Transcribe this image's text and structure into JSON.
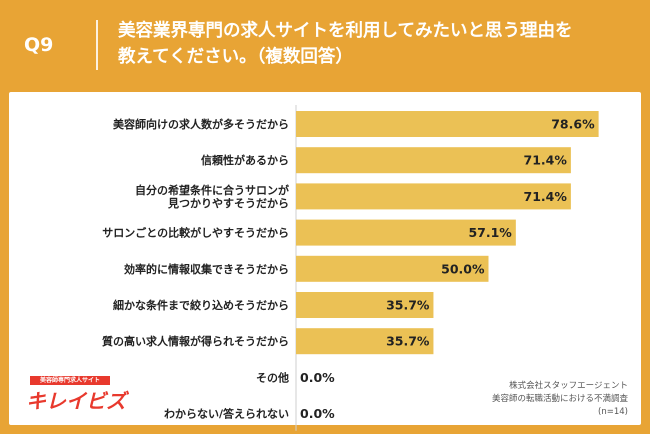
{
  "header": {
    "qnum": "Q9",
    "question_line1": "美容業界専門の求人サイトを利用してみたいと思う理由を",
    "question_line2": "教えてください。（複数回答）"
  },
  "chart_data": {
    "type": "bar",
    "orientation": "horizontal",
    "categories": [
      [
        "美容師向けの求人数が多そうだから"
      ],
      [
        "信頼性があるから"
      ],
      [
        "自分の希望条件に合うサロンが",
        "見つかりやすそうだから"
      ],
      [
        "サロンごとの比較がしやすそうだから"
      ],
      [
        "効率的に情報収集できそうだから"
      ],
      [
        "細かな条件まで絞り込めそうだから"
      ],
      [
        "質の高い求人情報が得られそうだから"
      ],
      [
        "その他"
      ],
      [
        "わからない/答えられない"
      ]
    ],
    "values": [
      78.6,
      71.4,
      71.4,
      57.1,
      50.0,
      35.7,
      35.7,
      0.0,
      0.0
    ],
    "value_labels": [
      "78.6%",
      "71.4%",
      "71.4%",
      "57.1%",
      "50.0%",
      "35.7%",
      "35.7%",
      "0.0%",
      "0.0%"
    ],
    "xlim": [
      0,
      80
    ],
    "bar_color": "#ebc155"
  },
  "logo": {
    "tagline": "美容師専門求人サイト",
    "name": "キレイビズ"
  },
  "source": {
    "line1": "株式会社スタッフエージェント",
    "line2": "美容師の転職活動における不満調査",
    "line3": "(n=14)"
  }
}
